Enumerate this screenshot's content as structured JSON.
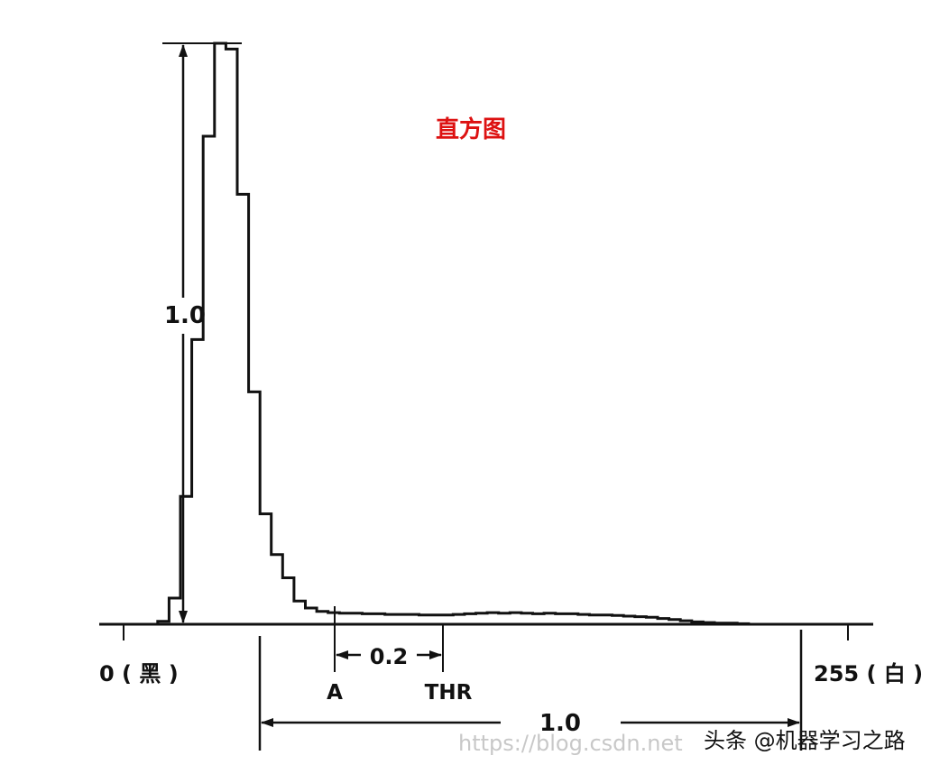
{
  "chart_data": {
    "type": "line",
    "title": "直方图",
    "x_min_label": "0 ( 黑 )",
    "x_max_label": "255 ( 白 )",
    "x_range": [
      0,
      255
    ],
    "y_range": [
      0,
      1.0
    ],
    "x": [
      0,
      8,
      12,
      16,
      20,
      24,
      28,
      32,
      36,
      40,
      44,
      48,
      52,
      56,
      60,
      64,
      68,
      72,
      76,
      80,
      84,
      88,
      92,
      96,
      100,
      104,
      108,
      112,
      116,
      120,
      124,
      128,
      132,
      136,
      140,
      144,
      148,
      152,
      156,
      160,
      164,
      168,
      172,
      176,
      180,
      184,
      188,
      192,
      196,
      200,
      204,
      208,
      212,
      216,
      220,
      226,
      232
    ],
    "y": [
      0.0,
      0.0,
      0.005,
      0.045,
      0.22,
      0.49,
      0.84,
      1.0,
      0.99,
      0.74,
      0.4,
      0.19,
      0.12,
      0.08,
      0.04,
      0.028,
      0.022,
      0.02,
      0.019,
      0.019,
      0.018,
      0.018,
      0.017,
      0.017,
      0.017,
      0.016,
      0.016,
      0.016,
      0.017,
      0.018,
      0.019,
      0.02,
      0.019,
      0.02,
      0.019,
      0.018,
      0.019,
      0.018,
      0.018,
      0.017,
      0.016,
      0.016,
      0.015,
      0.014,
      0.013,
      0.012,
      0.01,
      0.008,
      0.006,
      0.004,
      0.003,
      0.002,
      0.002,
      0.001,
      0.0,
      0.0,
      0.0
    ],
    "annotations": {
      "peak_height_label": "1.0",
      "offset_label": "0.2",
      "point_a": "A",
      "point_thr": "THR",
      "span_label": "1.0"
    },
    "colors": {
      "title": "#dd1111",
      "line": "#111111"
    }
  },
  "watermark": {
    "text": "https://blog.csdn.net",
    "source": "头条 @机器学习之路"
  }
}
